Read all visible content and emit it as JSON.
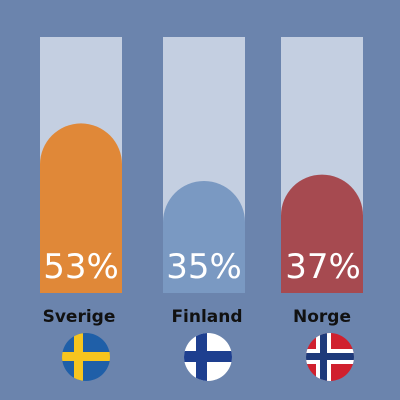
{
  "chart_data": {
    "type": "bar",
    "categories": [
      "Sverige",
      "Finland",
      "Norge"
    ],
    "values": [
      53,
      35,
      37
    ],
    "value_labels": [
      "53%",
      "35%",
      "37%"
    ],
    "ylim": [
      0,
      80
    ],
    "title": "",
    "xlabel": "",
    "ylabel": "",
    "grid": false,
    "legend": "none"
  },
  "colors": {
    "background": "#6b84ad",
    "track": "#c4cfe1",
    "bars": [
      "#e08838",
      "#7a99c2",
      "#a64a50"
    ]
  },
  "flags": [
    {
      "category": "Sverige",
      "icon": "swedish-flag-icon"
    },
    {
      "category": "Finland",
      "icon": "finnish-flag-icon"
    },
    {
      "category": "Norge",
      "icon": "norwegian-flag-icon"
    }
  ]
}
